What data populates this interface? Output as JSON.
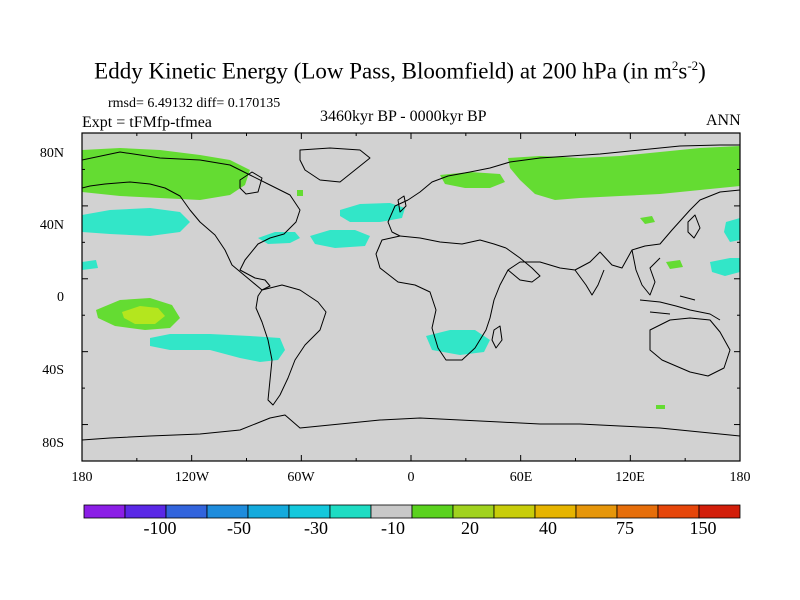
{
  "title_main": "Eddy Kinetic Energy (Low Pass, Bloomfield) at 200 hPa (in m",
  "title_sup1": "2",
  "title_s": "s",
  "title_sup2": "-2",
  "title_close": ")",
  "stats": "rmsd= 6.49132  diff= 0.170135",
  "expt": "Expt = tFMfp-tfmea",
  "period": "3460kyr BP - 0000kyr BP",
  "season": "ANN",
  "lat_ticks": [
    "80N",
    "40N",
    "0",
    "40S",
    "80S"
  ],
  "lon_ticks": [
    "180",
    "120W",
    "60W",
    "0",
    "60E",
    "120E",
    "180"
  ],
  "colorbar": {
    "colors": [
      "#8b1ee6",
      "#5a28e6",
      "#3264dc",
      "#1e8cdc",
      "#14aadc",
      "#14c8dc",
      "#1edcc3",
      "#c8c8c8",
      "#5ad21e",
      "#a0d21e",
      "#c8cd0a",
      "#e6b400",
      "#e6960a",
      "#e66e0a",
      "#e6460a",
      "#d21e0a"
    ],
    "labels": [
      "-100",
      "-50",
      "-30",
      "-10",
      "20",
      "40",
      "75",
      "150"
    ]
  },
  "colors": {
    "land_bg": "#d2d2d2",
    "positive": "#64dc32",
    "negative": "#32e6c8",
    "strong_positive": "#b4e61e"
  }
}
